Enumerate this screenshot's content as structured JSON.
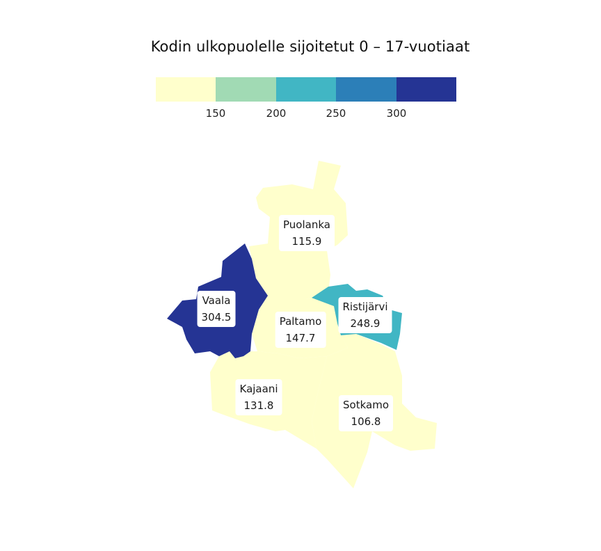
{
  "map": {
    "title": "Kodin ulkopuolelle sijoitetut 0 – 17-vuotiaat",
    "legend": {
      "colors": [
        "#ffffcc",
        "#a1dab4",
        "#41b6c4",
        "#2c7fb8",
        "#253494"
      ],
      "ticks": [
        "150",
        "200",
        "250",
        "300"
      ]
    },
    "regions": [
      {
        "name": "Puolanka",
        "value": "115.9",
        "color": "#ffffcc"
      },
      {
        "name": "Vaala",
        "value": "304.5",
        "color": "#253494"
      },
      {
        "name": "Paltamo",
        "value": "147.7",
        "color": "#ffffcc"
      },
      {
        "name": "Ristijärvi",
        "value": "248.9",
        "color": "#41b6c4"
      },
      {
        "name": "Kajaani",
        "value": "131.8",
        "color": "#ffffcc"
      },
      {
        "name": "Sotkamo",
        "value": "106.8",
        "color": "#ffffcc"
      }
    ]
  }
}
